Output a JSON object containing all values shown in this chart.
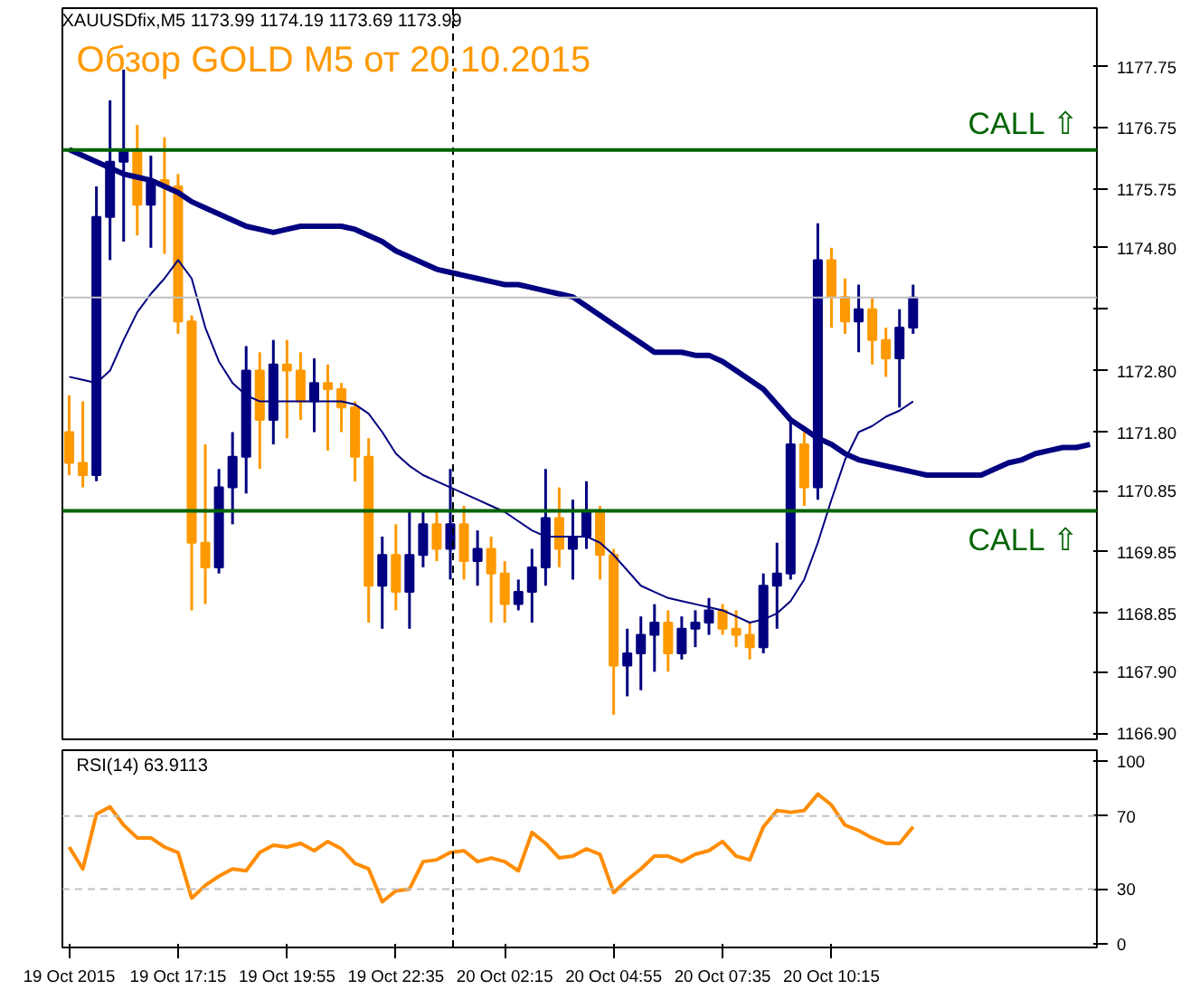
{
  "chart_data": [
    {
      "type": "candlestick",
      "title": "Обзор GOLD M5 от 20.10.2015",
      "annotations": [
        "XAUUSDfix,M5  1173.99 1174.19 1173.69 1173.99"
      ],
      "categories": [
        null,
        null,
        null,
        null,
        null,
        null,
        null,
        null,
        null,
        null,
        null,
        null,
        null,
        null,
        null,
        null,
        null,
        null,
        null,
        null,
        null,
        null,
        null,
        null,
        null,
        null,
        null,
        null,
        null,
        null,
        null,
        null,
        null,
        null,
        null,
        null,
        null,
        null,
        null,
        null,
        null,
        null,
        null,
        null,
        null,
        null,
        null,
        null,
        null,
        null,
        null,
        null,
        null,
        null,
        null,
        null,
        null,
        null,
        null,
        null,
        null,
        null,
        null,
        null,
        null,
        null,
        null,
        null,
        null,
        null,
        null,
        null,
        null,
        null,
        null,
        null
      ],
      "ohlc": [
        [
          1171.8,
          1172.4,
          1171.1,
          1171.3
        ],
        [
          1171.3,
          1172.3,
          1170.9,
          1171.1
        ],
        [
          1171.1,
          1175.8,
          1171.0,
          1175.3
        ],
        [
          1175.3,
          1177.2,
          1174.6,
          1176.2
        ],
        [
          1176.2,
          1177.7,
          1174.9,
          1176.4
        ],
        [
          1176.4,
          1176.8,
          1175.0,
          1175.5
        ],
        [
          1175.5,
          1176.3,
          1174.8,
          1175.9
        ],
        [
          1175.9,
          1176.6,
          1174.7,
          1175.8
        ],
        [
          1175.8,
          1176.0,
          1173.4,
          1173.6
        ],
        [
          1173.6,
          1173.7,
          1168.9,
          1170.0
        ],
        [
          1170.0,
          1171.6,
          1169.0,
          1169.6
        ],
        [
          1169.6,
          1171.2,
          1169.5,
          1170.9
        ],
        [
          1170.9,
          1171.8,
          1170.3,
          1171.4
        ],
        [
          1171.4,
          1173.2,
          1170.8,
          1172.8
        ],
        [
          1172.8,
          1173.1,
          1171.2,
          1172.0
        ],
        [
          1172.0,
          1173.3,
          1171.6,
          1172.9
        ],
        [
          1172.9,
          1173.3,
          1171.7,
          1172.8
        ],
        [
          1172.8,
          1173.1,
          1172.0,
          1172.3
        ],
        [
          1172.3,
          1173.0,
          1171.8,
          1172.6
        ],
        [
          1172.6,
          1172.9,
          1171.5,
          1172.5
        ],
        [
          1172.5,
          1172.6,
          1171.8,
          1172.2
        ],
        [
          1172.2,
          1172.3,
          1171.0,
          1171.4
        ],
        [
          1171.4,
          1171.7,
          1168.7,
          1169.3
        ],
        [
          1169.3,
          1170.1,
          1168.6,
          1169.8
        ],
        [
          1169.8,
          1170.3,
          1168.9,
          1169.2
        ],
        [
          1169.2,
          1170.5,
          1168.6,
          1169.8
        ],
        [
          1169.8,
          1170.5,
          1169.6,
          1170.3
        ],
        [
          1170.3,
          1170.5,
          1169.7,
          1169.9
        ],
        [
          1169.9,
          1171.2,
          1169.4,
          1170.3
        ],
        [
          1170.3,
          1170.6,
          1169.4,
          1169.7
        ],
        [
          1169.7,
          1170.2,
          1169.3,
          1169.9
        ],
        [
          1169.9,
          1170.1,
          1168.7,
          1169.5
        ],
        [
          1169.5,
          1169.7,
          1168.7,
          1169.0
        ],
        [
          1169.0,
          1169.4,
          1168.9,
          1169.2
        ],
        [
          1169.2,
          1169.9,
          1168.7,
          1169.6
        ],
        [
          1169.6,
          1171.2,
          1169.3,
          1170.4
        ],
        [
          1170.4,
          1170.9,
          1169.6,
          1169.9
        ],
        [
          1169.9,
          1170.7,
          1169.4,
          1170.1
        ],
        [
          1170.1,
          1171.0,
          1169.9,
          1170.5
        ],
        [
          1170.5,
          1170.6,
          1169.4,
          1169.8
        ],
        [
          1169.8,
          1169.9,
          1167.2,
          1168.0
        ],
        [
          1168.0,
          1168.6,
          1167.5,
          1168.2
        ],
        [
          1168.2,
          1168.8,
          1167.6,
          1168.5
        ],
        [
          1168.5,
          1169.0,
          1167.9,
          1168.7
        ],
        [
          1168.7,
          1168.9,
          1167.9,
          1168.2
        ],
        [
          1168.2,
          1168.8,
          1168.1,
          1168.6
        ],
        [
          1168.6,
          1168.9,
          1168.3,
          1168.7
        ],
        [
          1168.7,
          1169.1,
          1168.5,
          1168.9
        ],
        [
          1168.9,
          1169.0,
          1168.5,
          1168.6
        ],
        [
          1168.6,
          1168.9,
          1168.3,
          1168.5
        ],
        [
          1168.5,
          1168.7,
          1168.1,
          1168.3
        ],
        [
          1168.3,
          1169.5,
          1168.2,
          1169.3
        ],
        [
          1169.3,
          1170.0,
          1168.6,
          1169.5
        ],
        [
          1169.5,
          1172.0,
          1169.4,
          1171.6
        ],
        [
          1171.6,
          1171.8,
          1170.6,
          1170.9
        ],
        [
          1170.9,
          1175.2,
          1170.7,
          1174.6
        ],
        [
          1174.6,
          1174.8,
          1173.5,
          1174.0
        ],
        [
          1174.0,
          1174.3,
          1173.4,
          1173.6
        ],
        [
          1173.6,
          1174.2,
          1173.1,
          1173.8
        ],
        [
          1173.8,
          1174.0,
          1172.9,
          1173.3
        ],
        [
          1173.3,
          1173.5,
          1172.7,
          1173.0
        ],
        [
          1173.0,
          1173.8,
          1172.2,
          1173.5
        ],
        [
          1173.5,
          1174.2,
          1173.4,
          1173.99
        ],
        null,
        null,
        null,
        null,
        null,
        null,
        null,
        null,
        null,
        null,
        null,
        null,
        null
      ],
      "colors": [
        "#ff9900",
        "#ff9900",
        "#000080",
        "#000080",
        "#000080",
        "#ff9900",
        "#000080",
        "#ff9900",
        "#ff9900",
        "#ff9900",
        "#ff9900",
        "#000080",
        "#000080",
        "#000080",
        "#ff9900",
        "#000080",
        "#ff9900",
        "#ff9900",
        "#000080",
        "#ff9900",
        "#ff9900",
        "#ff9900",
        "#ff9900",
        "#000080",
        "#ff9900",
        "#000080",
        "#000080",
        "#ff9900",
        "#000080",
        "#ff9900",
        "#000080",
        "#ff9900",
        "#ff9900",
        "#000080",
        "#000080",
        "#000080",
        "#ff9900",
        "#000080",
        "#000080",
        "#ff9900",
        "#ff9900",
        "#000080",
        "#000080",
        "#000080",
        "#ff9900",
        "#000080",
        "#000080",
        "#000080",
        "#ff9900",
        "#ff9900",
        "#ff9900",
        "#000080",
        "#000080",
        "#000080",
        "#ff9900",
        "#000080",
        "#ff9900",
        "#ff9900",
        "#000080",
        "#ff9900",
        "#ff9900",
        "#000080",
        "#000080",
        null,
        null,
        null,
        null,
        null,
        null,
        null,
        null,
        null,
        null,
        null,
        null,
        null
      ],
      "series": [
        {
          "type": "line",
          "color": "#000080",
          "values": [
            1176.4,
            1176.3,
            1176.2,
            1176.1,
            1176.0,
            1175.95,
            1175.9,
            1175.8,
            1175.7,
            1175.55,
            1175.45,
            1175.35,
            1175.25,
            1175.15,
            1175.1,
            1175.05,
            1175.1,
            1175.15,
            1175.15,
            1175.15,
            1175.15,
            1175.1,
            1175.0,
            1174.9,
            1174.75,
            1174.65,
            1174.55,
            1174.45,
            1174.4,
            1174.35,
            1174.3,
            1174.25,
            1174.2,
            1174.2,
            1174.15,
            1174.1,
            1174.05,
            1174.0,
            1173.85,
            1173.7,
            1173.55,
            1173.4,
            1173.25,
            1173.1,
            1173.1,
            1173.1,
            1173.05,
            1173.05,
            1172.95,
            1172.8,
            1172.65,
            1172.5,
            1172.25,
            1172.0,
            1171.85,
            1171.7,
            1171.6,
            1171.45,
            1171.35,
            1171.3,
            1171.25,
            1171.2,
            1171.15,
            1171.1,
            1171.1,
            1171.1,
            1171.1,
            1171.1,
            1171.2,
            1171.3,
            1171.35,
            1171.45,
            1171.5,
            1171.55,
            1171.55,
            1171.6
          ]
        },
        {
          "type": "line",
          "color": "#000080",
          "values": [
            1172.7,
            1172.65,
            1172.6,
            1172.8,
            1173.3,
            1173.75,
            1174.05,
            1174.3,
            1174.6,
            1174.3,
            1173.5,
            1172.95,
            1172.6,
            1172.4,
            1172.3,
            1172.3,
            1172.3,
            1172.3,
            1172.3,
            1172.3,
            1172.3,
            1172.25,
            1172.1,
            1171.8,
            1171.45,
            1171.25,
            1171.1,
            1171.0,
            1170.9,
            1170.8,
            1170.7,
            1170.6,
            1170.5,
            1170.35,
            1170.2,
            1170.1,
            1170.1,
            1170.1,
            1170.1,
            1170.0,
            1169.8,
            1169.55,
            1169.3,
            1169.2,
            1169.1,
            1169.05,
            1169.0,
            1168.95,
            1168.9,
            1168.8,
            1168.7,
            1168.75,
            1168.85,
            1169.05,
            1169.4,
            1170.0,
            1170.7,
            1171.35,
            1171.8,
            1171.9,
            1172.05,
            1172.15,
            1172.3,
            null,
            null,
            null,
            null,
            null,
            null,
            null,
            null,
            null,
            null,
            null,
            null,
            null
          ]
        }
      ],
      "ylim": [
        1166.8,
        1178.7
      ],
      "yticks": [
        {
          "value": 1177.75,
          "label": "1177.75"
        },
        {
          "value": 1176.75,
          "label": "1176.75"
        },
        {
          "value": 1175.75,
          "label": "1175.75"
        },
        {
          "value": 1174.8,
          "label": "1174.80"
        },
        {
          "value": 1173.8,
          "label": null
        },
        {
          "value": 1172.8,
          "label": "1172.80"
        },
        {
          "value": 1171.8,
          "label": "1171.80"
        },
        {
          "value": 1170.85,
          "label": "1170.85"
        },
        {
          "value": 1169.85,
          "label": "1169.85"
        },
        {
          "value": 1168.85,
          "label": "1168.85"
        },
        {
          "value": 1167.9,
          "label": "1167.90"
        },
        {
          "value": 1166.9,
          "label": "1166.90"
        }
      ],
      "tick_labels": "y",
      "ref_lines": [
        {
          "axis": "y",
          "value": 1176.39,
          "label": "CALL ⇧",
          "color": "#006400"
        },
        {
          "axis": "y",
          "value": 1170.52,
          "label": "CALL ⇧",
          "color": "#006400"
        },
        {
          "axis": "y",
          "value": 1173.99,
          "label": null,
          "color": "#c0c0c0"
        }
      ]
    },
    {
      "type": "line",
      "title": "RSI(14) 63.9113",
      "categories": [
        "19 Oct 2015",
        null,
        null,
        null,
        null,
        null,
        null,
        null,
        "19 Oct 17:15",
        null,
        null,
        null,
        null,
        null,
        null,
        null,
        "19 Oct 19:55",
        null,
        null,
        null,
        null,
        null,
        null,
        null,
        "19 Oct 22:35",
        null,
        null,
        null,
        null,
        null,
        null,
        null,
        "20 Oct 02:15",
        null,
        null,
        null,
        null,
        null,
        null,
        null,
        "20 Oct 04:55",
        null,
        null,
        null,
        null,
        null,
        null,
        null,
        "20 Oct 07:35",
        null,
        null,
        null,
        null,
        null,
        null,
        null,
        "20 Oct 10:15",
        null,
        null,
        null,
        null,
        null,
        null,
        null,
        null,
        null,
        null,
        null,
        null,
        null,
        null,
        null,
        null,
        null,
        null,
        null
      ],
      "series": [
        {
          "color": "#ff8c00",
          "values": [
            53,
            41,
            71,
            75,
            65,
            58,
            58,
            53,
            50,
            25,
            32,
            37,
            41,
            40,
            50,
            54,
            53,
            55,
            51,
            56,
            52,
            44,
            41,
            23,
            29,
            30,
            45,
            46,
            50,
            51,
            45,
            47,
            45,
            40,
            61,
            55,
            47,
            48,
            52,
            49,
            28,
            35,
            41,
            48,
            48,
            45,
            49,
            51,
            56,
            48,
            46,
            64,
            73,
            72,
            73,
            82,
            76,
            65,
            62,
            58,
            55,
            55,
            64,
            null,
            null,
            null,
            null,
            null,
            null,
            null,
            null,
            null,
            null,
            null,
            null,
            null
          ]
        }
      ],
      "ylim": [
        -2,
        106
      ],
      "yticks": [
        0,
        30,
        70,
        100
      ],
      "ref_lines": [
        {
          "axis": "y",
          "value": 30,
          "color": "#c0c0c0",
          "line_style": "dashed"
        },
        {
          "axis": "y",
          "value": 70,
          "color": "#c0c0c0",
          "line_style": "dashed"
        }
      ]
    }
  ]
}
